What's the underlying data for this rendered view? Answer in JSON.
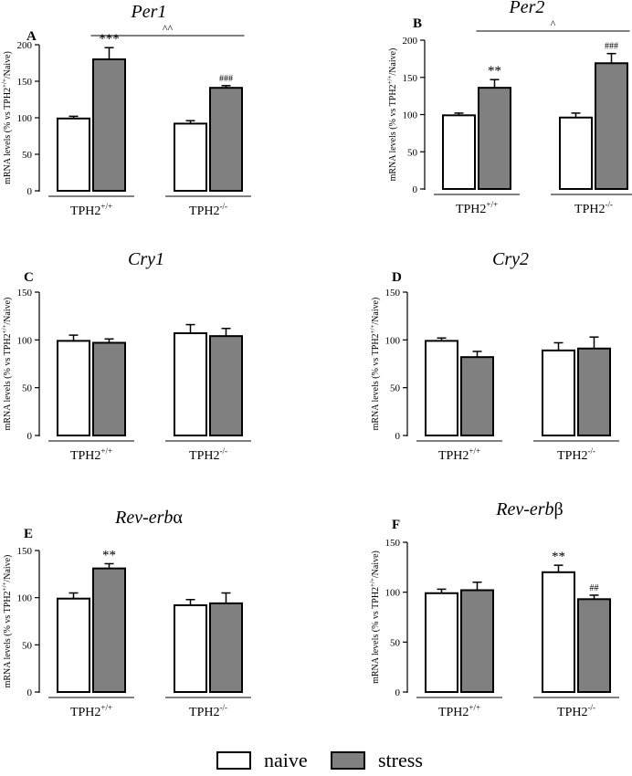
{
  "chart_data": [
    {
      "panel": "A",
      "type": "bar",
      "title": "Per1",
      "title_extra": "",
      "ylabel_main": "mRNA levels (% vs TPH2",
      "ylabel_sup": "+/+",
      "ylabel_end": "/Naive)",
      "ylim": [
        0,
        200
      ],
      "yticks": [
        0,
        50,
        100,
        150,
        200
      ],
      "groups": [
        {
          "label": "TPH2",
          "sup": "+/+",
          "naive": {
            "value": 99,
            "sem": 3
          },
          "stress": {
            "value": 180,
            "sem": 16
          },
          "stress_mark": "***"
        },
        {
          "label": "TPH2",
          "sup": "-/-",
          "naive": {
            "value": 92,
            "sem": 4
          },
          "stress": {
            "value": 141,
            "sem": 3
          },
          "stress_mark": "###"
        }
      ],
      "bracket": "^^"
    },
    {
      "panel": "B",
      "type": "bar",
      "title": "Per2",
      "title_extra": "",
      "ylabel_main": "mRNA levels (% vs TPH2",
      "ylabel_sup": "+/+",
      "ylabel_end": "/Naive)",
      "ylim": [
        0,
        200
      ],
      "yticks": [
        0,
        50,
        100,
        150,
        200
      ],
      "groups": [
        {
          "label": "TPH2",
          "sup": "+/+",
          "naive": {
            "value": 99,
            "sem": 3
          },
          "stress": {
            "value": 136,
            "sem": 11
          },
          "stress_mark": "**"
        },
        {
          "label": "TPH2",
          "sup": "-/-",
          "naive": {
            "value": 96,
            "sem": 6
          },
          "stress": {
            "value": 169,
            "sem": 13
          },
          "stress_mark": "###"
        }
      ],
      "bracket": "^"
    },
    {
      "panel": "C",
      "type": "bar",
      "title": "Cry1",
      "title_extra": "",
      "ylabel_main": "mRNA levels (% vs TPH2",
      "ylabel_sup": "+/+",
      "ylabel_end": "/Naive)",
      "ylim": [
        0,
        150
      ],
      "yticks": [
        0,
        50,
        100,
        150
      ],
      "groups": [
        {
          "label": "TPH2",
          "sup": "+/+",
          "naive": {
            "value": 99,
            "sem": 6
          },
          "stress": {
            "value": 97,
            "sem": 4
          }
        },
        {
          "label": "TPH2",
          "sup": "-/-",
          "naive": {
            "value": 107,
            "sem": 9
          },
          "stress": {
            "value": 104,
            "sem": 8
          }
        }
      ]
    },
    {
      "panel": "D",
      "type": "bar",
      "title": "Cry2",
      "title_extra": "",
      "ylabel_main": "mRNA levels (% vs TPH2",
      "ylabel_sup": "+/+",
      "ylabel_end": "/Naive)",
      "ylim": [
        0,
        150
      ],
      "yticks": [
        0,
        50,
        100,
        150
      ],
      "groups": [
        {
          "label": "TPH2",
          "sup": "+/+",
          "naive": {
            "value": 99,
            "sem": 3
          },
          "stress": {
            "value": 82,
            "sem": 6
          }
        },
        {
          "label": "TPH2",
          "sup": "-/-",
          "naive": {
            "value": 89,
            "sem": 8
          },
          "stress": {
            "value": 91,
            "sem": 12
          }
        }
      ]
    },
    {
      "panel": "E",
      "type": "bar",
      "title": "Rev-erb",
      "title_extra": "α",
      "ylabel_main": "mRNA levels (% vs TPH2",
      "ylabel_sup": "+/+",
      "ylabel_end": "/Naive)",
      "ylim": [
        0,
        150
      ],
      "yticks": [
        0,
        50,
        100,
        150
      ],
      "groups": [
        {
          "label": "TPH2",
          "sup": "+/+",
          "naive": {
            "value": 99,
            "sem": 6
          },
          "stress": {
            "value": 131,
            "sem": 5
          },
          "stress_mark": "**"
        },
        {
          "label": "TPH2",
          "sup": "-/-",
          "naive": {
            "value": 92,
            "sem": 6
          },
          "stress": {
            "value": 94,
            "sem": 11
          }
        }
      ]
    },
    {
      "panel": "F",
      "type": "bar",
      "title": "Rev-erb",
      "title_extra": "β",
      "ylabel_main": "mRNA levels (% vs TPH2",
      "ylabel_sup": "+/+",
      "ylabel_end": "/Naive)",
      "ylim": [
        0,
        150
      ],
      "yticks": [
        0,
        50,
        100,
        150
      ],
      "groups": [
        {
          "label": "TPH2",
          "sup": "+/+",
          "naive": {
            "value": 99,
            "sem": 4
          },
          "stress": {
            "value": 102,
            "sem": 8
          }
        },
        {
          "label": "TPH2",
          "sup": "-/-",
          "naive": {
            "value": 120,
            "sem": 7
          },
          "stress": {
            "value": 93,
            "sem": 4
          },
          "naive_mark": "**",
          "stress_mark": "##"
        }
      ]
    }
  ],
  "legend": {
    "naive": "naive",
    "stress": "stress",
    "colors": {
      "naive": "#ffffff",
      "stress": "#808080",
      "outline": "#000000"
    }
  }
}
